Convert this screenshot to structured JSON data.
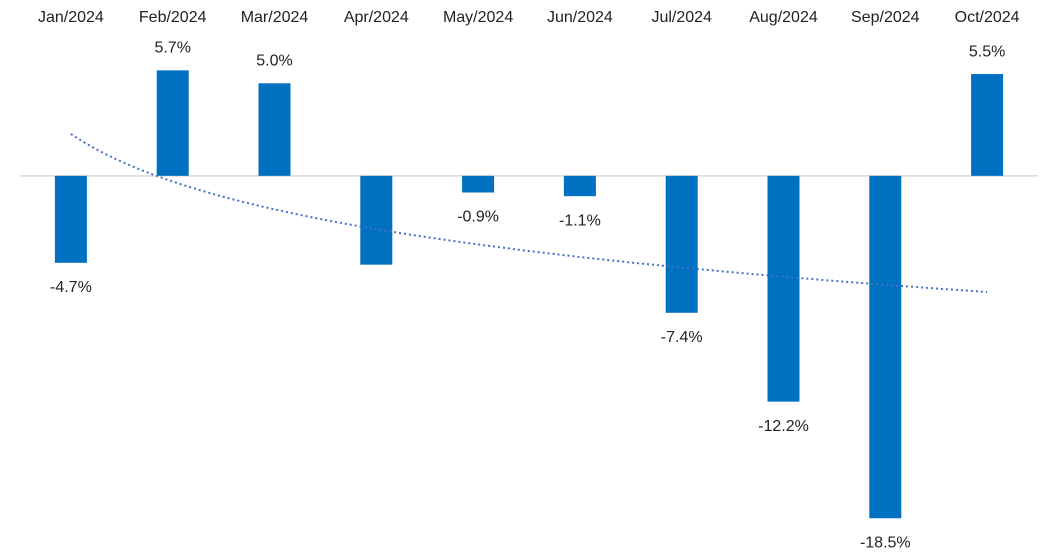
{
  "chart_data": {
    "type": "bar",
    "categories": [
      "Jan/2024",
      "Feb/2024",
      "Mar/2024",
      "Apr/2024",
      "May/2024",
      "Jun/2024",
      "Jul/2024",
      "Aug/2024",
      "Sep/2024",
      "Oct/2024"
    ],
    "values": [
      -4.7,
      5.7,
      5.0,
      -4.8,
      -0.9,
      -1.1,
      -7.4,
      -12.2,
      -18.5,
      5.5
    ],
    "value_labels": [
      "-4.7%",
      "5.7%",
      "5.0%",
      null,
      "-0.9%",
      "-1.1%",
      "-7.4%",
      "-12.2%",
      "-18.5%",
      "5.5%"
    ],
    "color": "#0070c0",
    "ylim": [
      -20,
      9.5
    ],
    "trendline": "logarithmic",
    "trendline_color": "#4472c4"
  }
}
